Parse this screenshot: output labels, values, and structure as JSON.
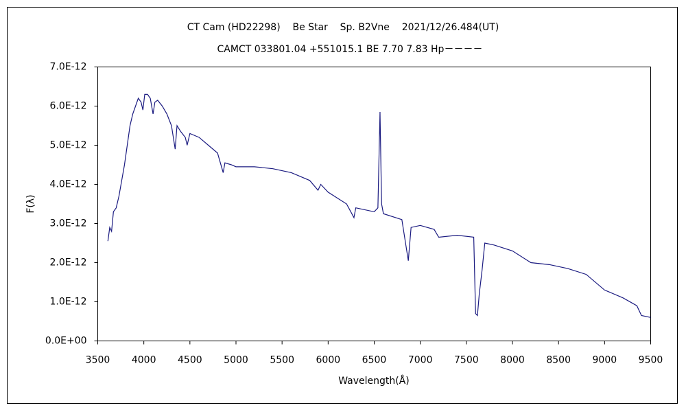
{
  "chart_data": {
    "type": "line",
    "title": "CT Cam (HD22298)    Be Star    Sp. B2Vne    2021/12/26.484(UT)",
    "subtitle": "CAMCT 033801.04 +551015.1 BE 7.70 7.83 Hp－－－－",
    "x_label": "Wavelength(Å)",
    "y_label": "F(λ)",
    "color": "#1a1a80",
    "x": [
      3610,
      3630,
      3650,
      3670,
      3700,
      3730,
      3760,
      3790,
      3820,
      3850,
      3880,
      3910,
      3940,
      3970,
      3990,
      4010,
      4040,
      4070,
      4100,
      4120,
      4150,
      4200,
      4250,
      4300,
      4340,
      4360,
      4400,
      4450,
      4470,
      4500,
      4550,
      4600,
      4700,
      4800,
      4861,
      4880,
      4950,
      5000,
      5200,
      5400,
      5600,
      5800,
      5890,
      5920,
      6000,
      6200,
      6280,
      6300,
      6500,
      6540,
      6563,
      6580,
      6600,
      6800,
      6870,
      6900,
      7000,
      7150,
      7200,
      7400,
      7580,
      7600,
      7620,
      7640,
      7670,
      7700,
      7800,
      8000,
      8200,
      8400,
      8600,
      8800,
      9000,
      9200,
      9350,
      9400,
      9500
    ],
    "values": [
      2.55e-12,
      2.9e-12,
      2.8e-12,
      3.3e-12,
      3.4e-12,
      3.7e-12,
      4.1e-12,
      4.5e-12,
      5e-12,
      5.5e-12,
      5.8e-12,
      6e-12,
      6.2e-12,
      6.1e-12,
      5.9e-12,
      6.3e-12,
      6.3e-12,
      6.2e-12,
      5.8e-12,
      6.1e-12,
      6.15e-12,
      6e-12,
      5.8e-12,
      5.5e-12,
      4.9e-12,
      5.5e-12,
      5.35e-12,
      5.2e-12,
      5e-12,
      5.3e-12,
      5.25e-12,
      5.2e-12,
      5e-12,
      4.8e-12,
      4.3e-12,
      4.55e-12,
      4.5e-12,
      4.45e-12,
      4.45e-12,
      4.4e-12,
      4.3e-12,
      4.1e-12,
      3.85e-12,
      4e-12,
      3.8e-12,
      3.5e-12,
      3.15e-12,
      3.4e-12,
      3.3e-12,
      3.4e-12,
      5.85e-12,
      3.5e-12,
      3.25e-12,
      3.1e-12,
      2.05e-12,
      2.9e-12,
      2.95e-12,
      2.85e-12,
      2.65e-12,
      2.7e-12,
      2.65e-12,
      7e-13,
      6.5e-13,
      1.2e-12,
      1.8e-12,
      2.5e-12,
      2.45e-12,
      2.3e-12,
      2e-12,
      1.95e-12,
      1.85e-12,
      1.7e-12,
      1.3e-12,
      1.1e-12,
      9e-13,
      6.5e-13,
      6e-13
    ],
    "xlim": [
      3500,
      9500
    ],
    "xticks": [
      3500,
      4000,
      4500,
      5000,
      5500,
      6000,
      6500,
      7000,
      7500,
      8000,
      8500,
      9000,
      9500
    ],
    "ylim": [
      0,
      7e-12
    ],
    "yticks": [
      {
        "value": 0,
        "label": "0.0E+00"
      },
      {
        "value": 1e-12,
        "label": "1.0E-12"
      },
      {
        "value": 2e-12,
        "label": "2.0E-12"
      },
      {
        "value": 3e-12,
        "label": "3.0E-12"
      },
      {
        "value": 4e-12,
        "label": "4.0E-12"
      },
      {
        "value": 5e-12,
        "label": "5.0E-12"
      },
      {
        "value": 6e-12,
        "label": "6.0E-12"
      },
      {
        "value": 7e-12,
        "label": "7.0E-12"
      }
    ],
    "grid": false
  }
}
